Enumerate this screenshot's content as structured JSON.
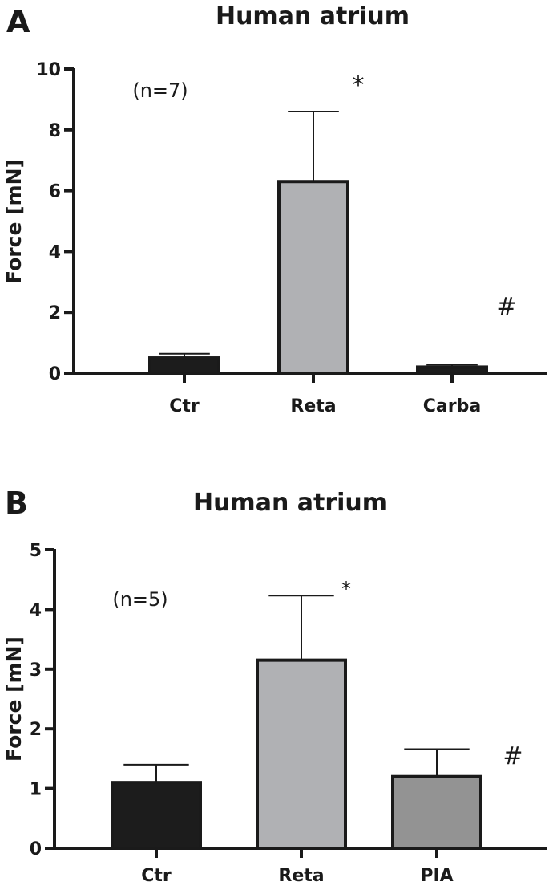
{
  "chart_data": [
    {
      "type": "bar",
      "panel": "A",
      "title": "Human atrium",
      "ylabel": "Force [mN]",
      "xlabel": "",
      "ylim": [
        0,
        10
      ],
      "yticks": [
        0,
        2,
        4,
        6,
        8,
        10
      ],
      "categories": [
        "Ctr",
        "Reta",
        "Carba"
      ],
      "values": [
        0.5,
        6.3,
        0.2
      ],
      "errors": [
        0.14,
        2.3,
        0.08
      ],
      "bar_colors": [
        "#1c1c1c",
        "#b0b1b4",
        "#1c1c1c"
      ],
      "annotation": "(n=7)",
      "significance": [
        "",
        "*",
        "#"
      ]
    },
    {
      "type": "bar",
      "panel": "B",
      "title": "Human atrium",
      "ylabel": "Force [mN]",
      "xlabel": "",
      "ylim": [
        0,
        5
      ],
      "yticks": [
        0,
        1,
        2,
        3,
        4,
        5
      ],
      "categories": [
        "Ctr",
        "Reta",
        "PIA"
      ],
      "values": [
        1.1,
        3.15,
        1.2
      ],
      "errors": [
        0.3,
        1.08,
        0.46
      ],
      "bar_colors": [
        "#1c1c1c",
        "#b0b1b4",
        "#939393"
      ],
      "annotation": "(n=5)",
      "significance": [
        "",
        "*",
        "#"
      ]
    }
  ]
}
